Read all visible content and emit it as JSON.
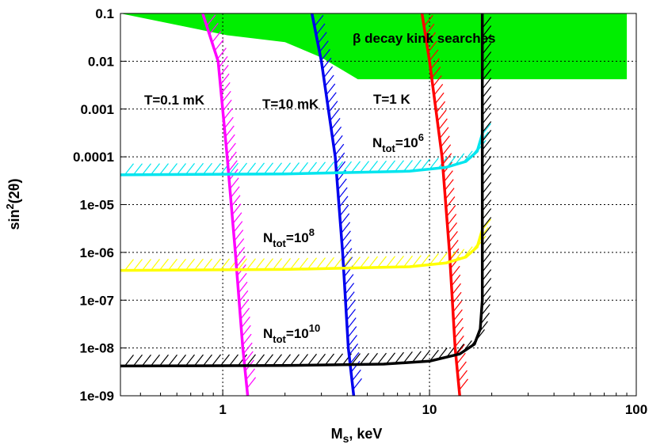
{
  "chart_data": {
    "type": "line",
    "x_scale": "log",
    "y_scale": "log",
    "xlim": [
      0.32,
      100
    ],
    "ylim": [
      1e-09,
      0.1
    ],
    "xlabel": "M",
    "xlabel_sub": "s",
    "xlabel_rest": ", keV",
    "ylabel": "sin",
    "ylabel_sup": "2",
    "ylabel_rest": "(2θ)",
    "x_ticks": [
      {
        "value": 1,
        "label": "1"
      },
      {
        "value": 10,
        "label": "10"
      },
      {
        "value": 100,
        "label": "100"
      }
    ],
    "y_ticks": [
      {
        "value": 0.1,
        "label": "0.1"
      },
      {
        "value": 0.01,
        "label": "0.01"
      },
      {
        "value": 0.001,
        "label": "0.001"
      },
      {
        "value": 0.0001,
        "label": "0.0001"
      },
      {
        "value": 1e-05,
        "label": "1e-05"
      },
      {
        "value": 1e-06,
        "label": "1e-06"
      },
      {
        "value": 1e-07,
        "label": "1e-07"
      },
      {
        "value": 1e-08,
        "label": "1e-08"
      },
      {
        "value": 1e-09,
        "label": "1e-09"
      }
    ],
    "grid": true,
    "excluded_region": {
      "label": "β decay kink searches",
      "color": "#00ee00",
      "points": [
        [
          0.32,
          0.1
        ],
        [
          90,
          0.1
        ],
        [
          90,
          0.0042
        ],
        [
          4.5,
          0.0042
        ],
        [
          3.0,
          0.012
        ],
        [
          2.0,
          0.025
        ],
        [
          1.05,
          0.035
        ],
        [
          0.32,
          0.1
        ]
      ]
    },
    "series": [
      {
        "label": "T=0.1 mK",
        "color": "#ff00ff",
        "hatch": "right",
        "points": [
          [
            0.8,
            0.1
          ],
          [
            0.95,
            0.01
          ],
          [
            1.05,
            0.0001
          ],
          [
            1.15,
            1e-06
          ],
          [
            1.25,
            1e-08
          ],
          [
            1.32,
            1e-09
          ]
        ]
      },
      {
        "label": "T=10 mK",
        "color": "#0000ee",
        "hatch": "right",
        "points": [
          [
            2.7,
            0.1
          ],
          [
            3.0,
            0.01
          ],
          [
            3.5,
            0.0001
          ],
          [
            3.8,
            1e-06
          ],
          [
            4.05,
            1e-08
          ],
          [
            4.3,
            1e-09
          ]
        ]
      },
      {
        "label": "T=1 K",
        "color": "#ff0000",
        "hatch": "right",
        "points": [
          [
            9.2,
            0.1
          ],
          [
            10.0,
            0.01
          ],
          [
            11.5,
            0.0001
          ],
          [
            12.5,
            1e-06
          ],
          [
            13.3,
            1e-08
          ],
          [
            14.0,
            1e-09
          ]
        ]
      },
      {
        "label_main": "N",
        "label_sub": "tot",
        "label_eq": "=10",
        "label_sup": "6",
        "color": "#00e5ee",
        "hatch": "up",
        "points": [
          [
            0.32,
            4.2e-05
          ],
          [
            2,
            4.4e-05
          ],
          [
            8,
            5e-05
          ],
          [
            12,
            6e-05
          ],
          [
            15,
            8e-05
          ],
          [
            17,
            0.00013
          ],
          [
            18,
            0.0003
          ]
        ]
      },
      {
        "label_main": "N",
        "label_sub": "tot",
        "label_eq": "=10",
        "label_sup": "8",
        "color": "#ffff00",
        "hatch": "up",
        "points": [
          [
            0.32,
            4.2e-07
          ],
          [
            2,
            4.4e-07
          ],
          [
            8,
            5e-07
          ],
          [
            12,
            6e-07
          ],
          [
            15,
            8e-07
          ],
          [
            17,
            1.3e-06
          ],
          [
            18,
            3e-06
          ]
        ]
      },
      {
        "label_main": "N",
        "label_sub": "tot",
        "label_eq": "=10",
        "label_sup": "10",
        "color": "#000000",
        "hatch": "up",
        "points": [
          [
            0.32,
            4.2e-09
          ],
          [
            2,
            4.3e-09
          ],
          [
            6,
            4.6e-09
          ],
          [
            10,
            5.3e-09
          ],
          [
            14,
            7.5e-09
          ],
          [
            16.5,
            1.2e-08
          ],
          [
            17.6,
            2.5e-08
          ],
          [
            18,
            1e-07
          ],
          [
            18,
            0.1
          ]
        ]
      }
    ]
  }
}
